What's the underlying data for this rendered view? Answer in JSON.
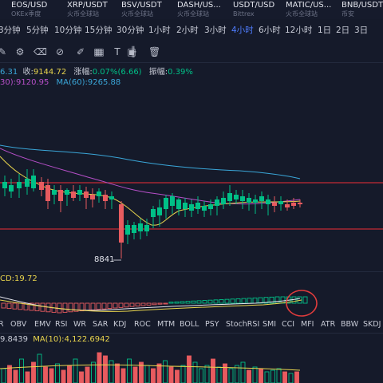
{
  "pairs": [
    {
      "symbol": "EOS/USD",
      "exchange": "OKEx季度"
    },
    {
      "symbol": "XRP/USDT",
      "exchange": "火币全球站"
    },
    {
      "symbol": "BSV/USDT",
      "exchange": "火币全球站"
    },
    {
      "symbol": "DASH/US...",
      "exchange": "火币全球站"
    },
    {
      "symbol": "USDT/USD",
      "exchange": "Bittrex"
    },
    {
      "symbol": "MATIC/US...",
      "exchange": "火币全球站"
    },
    {
      "symbol": "BNB/USDT",
      "exchange": "币安"
    }
  ],
  "timeframes": [
    "3分钟",
    "5分钟",
    "10分钟",
    "15分钟",
    "30分钟",
    "1小时",
    "2小时",
    "3小时",
    "4小时",
    "6小时",
    "12小时",
    "1日",
    "2日",
    "3日"
  ],
  "active_timeframe": "4小时",
  "tools": [
    "pen-icon",
    "settings-icon",
    "eraser-icon",
    "link-icon",
    "brush-icon",
    "layers-icon",
    "grid-icon",
    "text-icon",
    "split-icon",
    "image-icon",
    "trash-icon"
  ],
  "ohlc": {
    "prev_value": "6.31",
    "close_label": "收:",
    "close_value": "9144.72",
    "change_label": "涨幅:",
    "change_value": "0.07%(6.66)",
    "amplitude_label": "振幅:",
    "amplitude_value": "0.39%"
  },
  "ma": {
    "ma30_label": "30):",
    "ma30_value": "9120.95",
    "ma60_label": "MA(60):",
    "ma60_value": "9265.88"
  },
  "low_marker": "8841",
  "macd_label": "CD:19.72",
  "indicators": [
    "R",
    "OBV",
    "EMV",
    "RSI",
    "WR",
    "SAR",
    "KDJ",
    "ROC",
    "MTM",
    "BOLL",
    "PSY",
    "StochRSI",
    "SMI",
    "CCI",
    "MFI",
    "ATR",
    "BBW",
    "SKDJ"
  ],
  "volume": {
    "value_label": "9.8439",
    "ma10_label": "MA(10):",
    "ma10_value": "4,122.6942"
  },
  "colors": {
    "up": "#00c087",
    "down": "#e85b5f",
    "accent": "#4f7dff",
    "ma_yellow": "#e8d44d",
    "ma_pink": "#b64fc8",
    "ma_blue": "#3aa6d8",
    "highlight_circle": "#e03c3c",
    "support_line": "#c42b35"
  }
}
